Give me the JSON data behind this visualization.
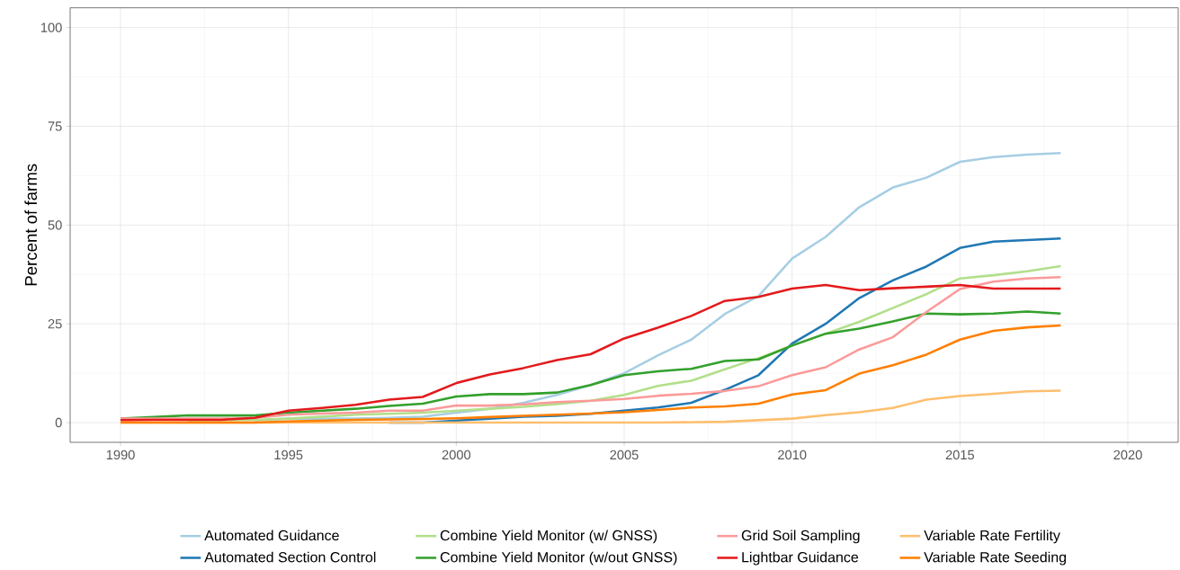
{
  "chart_data": {
    "type": "line",
    "ylabel": "Percent of farms",
    "x": [
      1990,
      1991,
      1992,
      1993,
      1994,
      1995,
      1996,
      1997,
      1998,
      1999,
      2000,
      2001,
      2002,
      2003,
      2004,
      2005,
      2006,
      2007,
      2008,
      2009,
      2010,
      2011,
      2012,
      2013,
      2014,
      2015,
      2016,
      2017,
      2018
    ],
    "xlim": [
      1988.5,
      2021.5
    ],
    "ylim": [
      -5,
      105
    ],
    "xticks": [
      1990,
      1995,
      2000,
      2005,
      2010,
      2015,
      2020
    ],
    "yticks": [
      0,
      25,
      50,
      75,
      100
    ],
    "grid": true,
    "legend": "bottom",
    "line_style": "solid",
    "series": [
      {
        "name": "Automated Guidance",
        "color": "#a6cee3",
        "values": [
          null,
          null,
          null,
          null,
          0.5,
          1,
          1,
          1,
          1.2,
          1.5,
          2.5,
          3.5,
          5,
          7,
          9.5,
          12.5,
          17,
          21,
          27.5,
          32,
          41.5,
          47,
          54.5,
          59.5,
          62,
          66,
          67.2,
          67.8,
          68.2
        ]
      },
      {
        "name": "Automated Section Control",
        "color": "#1f78b4",
        "values": [
          null,
          null,
          null,
          null,
          null,
          null,
          null,
          null,
          0,
          0,
          0.5,
          1,
          1.5,
          1.7,
          2.2,
          3,
          3.8,
          5,
          8.3,
          12,
          20,
          25,
          31.5,
          36,
          39.5,
          44.2,
          45.8,
          46.2,
          46.6
        ]
      },
      {
        "name": "Combine Yield Monitor (w/ GNSS)",
        "color": "#b2df8a",
        "values": [
          null,
          null,
          0.5,
          0.6,
          0.7,
          1,
          1.5,
          2,
          2.2,
          2.5,
          3,
          3.5,
          4,
          4.7,
          5.5,
          7,
          9.3,
          10.6,
          13.5,
          16.3,
          19.5,
          22.5,
          25.5,
          29,
          32.5,
          36.5,
          37.3,
          38.3,
          39.6
        ]
      },
      {
        "name": "Combine Yield Monitor (w/out GNSS)",
        "color": "#33a02c",
        "values": [
          1,
          1.4,
          1.8,
          1.8,
          1.8,
          2.5,
          3,
          3.5,
          4.2,
          4.8,
          6.6,
          7.2,
          7.2,
          7.6,
          9.5,
          12,
          13,
          13.6,
          15.6,
          16,
          19.5,
          22.5,
          23.8,
          25.6,
          27.6,
          27.4,
          27.6,
          28.1,
          27.6
        ]
      },
      {
        "name": "Grid Soil Sampling",
        "color": "#fb9a99",
        "values": [
          1,
          1,
          1,
          1,
          1.2,
          2,
          2.3,
          2.5,
          3,
          3,
          4.3,
          4.3,
          4.6,
          5.2,
          5.5,
          6,
          6.8,
          7.3,
          8,
          9.2,
          12,
          14,
          18.5,
          21.6,
          28,
          33.8,
          35.7,
          36.5,
          36.8
        ]
      },
      {
        "name": "Lightbar Guidance",
        "color": "#e31a1c",
        "values": [
          0.6,
          0.7,
          0.7,
          0.7,
          1.2,
          3,
          3.7,
          4.5,
          5.8,
          6.5,
          10,
          12.2,
          13.8,
          15.8,
          17.3,
          21.3,
          24,
          27,
          30.8,
          31.8,
          33.9,
          34.8,
          33.5,
          34,
          34.4,
          34.8,
          33.9,
          33.9,
          33.9
        ]
      },
      {
        "name": "Variable Rate Fertility",
        "color": "#fdbf6f",
        "values": [
          0,
          0,
          0,
          0,
          0,
          0,
          0,
          0,
          0,
          0,
          0,
          0,
          0,
          0,
          0,
          0,
          0,
          0.1,
          0.2,
          0.6,
          1,
          1.9,
          2.6,
          3.7,
          5.8,
          6.7,
          7.3,
          7.9,
          8.1
        ]
      },
      {
        "name": "Variable Rate Seeding",
        "color": "#ff7f00",
        "values": [
          0,
          0,
          0,
          0,
          0,
          0.3,
          0.5,
          0.7,
          0.8,
          0.9,
          1.1,
          1.4,
          1.7,
          2,
          2.3,
          2.6,
          3.2,
          3.8,
          4.1,
          4.8,
          7.1,
          8.2,
          12.4,
          14.5,
          17.2,
          21,
          23.2,
          24.1,
          24.6
        ]
      }
    ]
  }
}
